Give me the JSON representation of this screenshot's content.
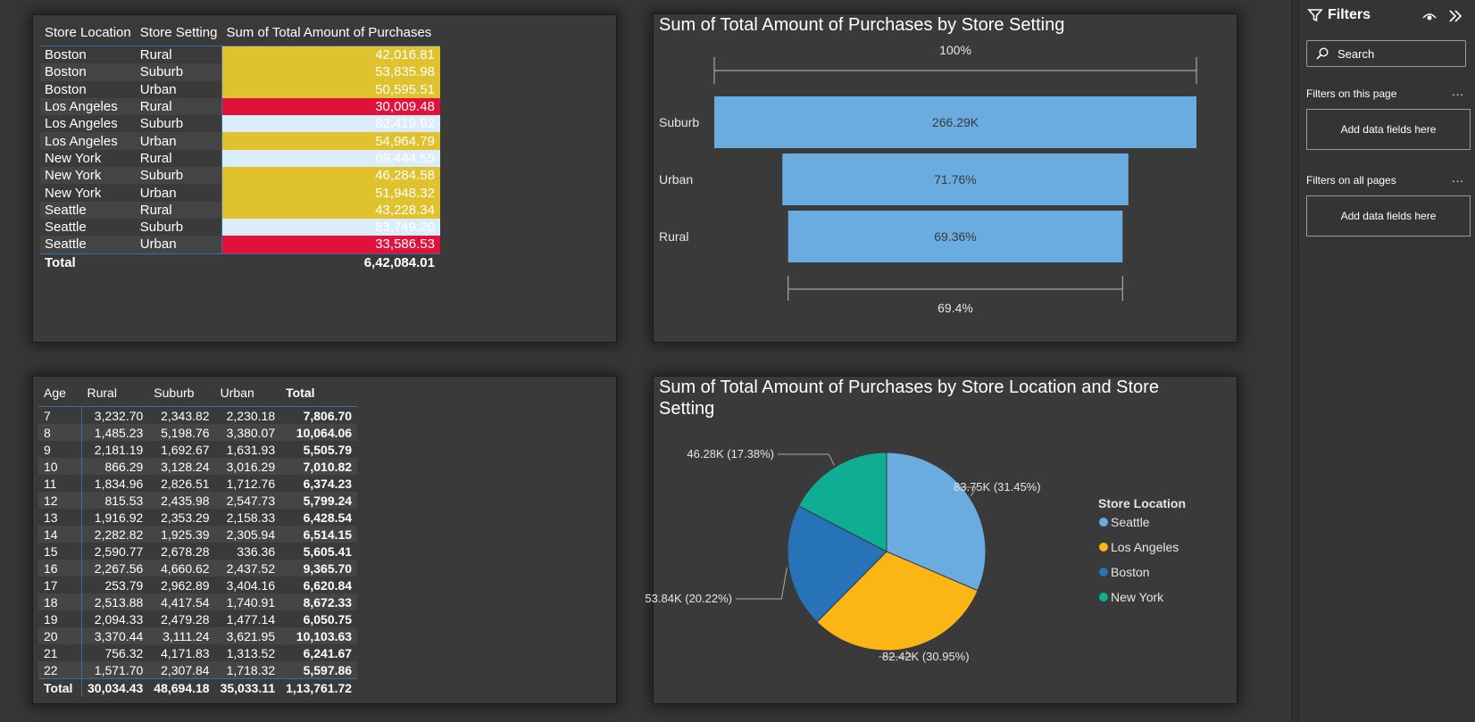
{
  "table1": {
    "headers": [
      "Store Location",
      "Store Setting",
      "Sum of Total Amount of Purchases"
    ],
    "rows": [
      {
        "loc": "Boston",
        "set": "Rural",
        "val": "42,016.81",
        "bg": "#e0c22e",
        "fg": "#ffffff"
      },
      {
        "loc": "Boston",
        "set": "Suburb",
        "val": "53,835.98",
        "bg": "#e0c22e",
        "fg": "#ffffff"
      },
      {
        "loc": "Boston",
        "set": "Urban",
        "val": "50,595.51",
        "bg": "#e0c22e",
        "fg": "#ffffff"
      },
      {
        "loc": "Los Angeles",
        "set": "Rural",
        "val": "30,009.48",
        "bg": "#e0113a",
        "fg": "#ffffff"
      },
      {
        "loc": "Los Angeles",
        "set": "Suburb",
        "val": "82,419.92",
        "bg": "#dbecfb",
        "fg": "#ffffff"
      },
      {
        "loc": "Los Angeles",
        "set": "Urban",
        "val": "54,964.79",
        "bg": "#e0c22e",
        "fg": "#ffffff"
      },
      {
        "loc": "New York",
        "set": "Rural",
        "val": "69,444.55",
        "bg": "#dbecfb",
        "fg": "#ffffff"
      },
      {
        "loc": "New York",
        "set": "Suburb",
        "val": "46,284.58",
        "bg": "#e0c22e",
        "fg": "#ffffff"
      },
      {
        "loc": "New York",
        "set": "Urban",
        "val": "51,948.32",
        "bg": "#e0c22e",
        "fg": "#ffffff"
      },
      {
        "loc": "Seattle",
        "set": "Rural",
        "val": "43,228.34",
        "bg": "#e0c22e",
        "fg": "#ffffff"
      },
      {
        "loc": "Seattle",
        "set": "Suburb",
        "val": "83,749.20",
        "bg": "#dbecfb",
        "fg": "#ffffff"
      },
      {
        "loc": "Seattle",
        "set": "Urban",
        "val": "33,586.53",
        "bg": "#e0113a",
        "fg": "#ffffff"
      }
    ],
    "total_label": "Total",
    "total_value": "6,42,084.01"
  },
  "funnel": {
    "title": "Sum of Total Amount of Purchases by Store Setting",
    "top_label": "100%",
    "bottom_label": "69.4%",
    "bar_color": "#6aace0"
  },
  "chart_data": [
    {
      "type": "bar",
      "subtype": "funnel",
      "title": "Sum of Total Amount of Purchases by Store Setting",
      "categories": [
        "Suburb",
        "Urban",
        "Rural"
      ],
      "values": [
        266290,
        191098,
        184699
      ],
      "data_labels": [
        "266.29K",
        "71.76%",
        "69.36%"
      ],
      "relative": [
        1.0,
        0.7176,
        0.6936
      ],
      "annotations": {
        "top": "100%",
        "bottom": "69.4%"
      }
    },
    {
      "type": "pie",
      "title": "Sum of Total Amount of Purchases by Store Location and Store Setting",
      "legend_title": "Store Location",
      "legend_position": "right",
      "labels": [
        "Seattle",
        "Los Angeles",
        "Boston",
        "New York"
      ],
      "values": [
        83.75,
        82.42,
        53.84,
        46.28
      ],
      "percents": [
        31.45,
        30.95,
        20.22,
        17.38
      ],
      "data_labels": [
        "83.75K (31.45%)",
        "82.42K (30.95%)",
        "53.84K (20.22%)",
        "46.28K (17.38%)"
      ],
      "colors": [
        "#6aace0",
        "#fbb515",
        "#2673b8",
        "#0fae94"
      ]
    }
  ],
  "table3": {
    "headers": [
      "Age",
      "Rural",
      "Suburb",
      "Urban",
      "Total"
    ],
    "rows": [
      [
        "7",
        "3,232.70",
        "2,343.82",
        "2,230.18",
        "7,806.70"
      ],
      [
        "8",
        "1,485.23",
        "5,198.76",
        "3,380.07",
        "10,064.06"
      ],
      [
        "9",
        "2,181.19",
        "1,692.67",
        "1,631.93",
        "5,505.79"
      ],
      [
        "10",
        "866.29",
        "3,128.24",
        "3,016.29",
        "7,010.82"
      ],
      [
        "11",
        "1,834.96",
        "2,826.51",
        "1,712.76",
        "6,374.23"
      ],
      [
        "12",
        "815.53",
        "2,435.98",
        "2,547.73",
        "5,799.24"
      ],
      [
        "13",
        "1,916.92",
        "2,353.29",
        "2,158.33",
        "6,428.54"
      ],
      [
        "14",
        "2,282.82",
        "1,925.39",
        "2,305.94",
        "6,514.15"
      ],
      [
        "15",
        "2,590.77",
        "2,678.28",
        "336.36",
        "5,605.41"
      ],
      [
        "16",
        "2,267.56",
        "4,660.62",
        "2,437.52",
        "9,365.70"
      ],
      [
        "17",
        "253.79",
        "2,962.89",
        "3,404.16",
        "6,620.84"
      ],
      [
        "18",
        "2,513.88",
        "4,417.54",
        "1,740.91",
        "8,672.33"
      ],
      [
        "19",
        "2,094.33",
        "2,479.28",
        "1,477.14",
        "6,050.75"
      ],
      [
        "20",
        "3,370.44",
        "3,111.24",
        "3,621.95",
        "10,103.63"
      ],
      [
        "21",
        "756.32",
        "4,171.83",
        "1,313.52",
        "6,241.67"
      ],
      [
        "22",
        "1,571.70",
        "2,307.84",
        "1,718.32",
        "5,597.86"
      ]
    ],
    "total": [
      "Total",
      "30,034.43",
      "48,694.18",
      "35,033.11",
      "1,13,761.72"
    ]
  },
  "pie": {
    "title_line1": "Sum of Total Amount of Purchases by Store Location and Store",
    "title_line2": "Setting"
  },
  "filters": {
    "title": "Filters",
    "search_placeholder": "Search",
    "on_this_page": "Filters on this page",
    "on_all_pages": "Filters on all pages",
    "dropzone_label": "Add data fields here",
    "more": "..."
  }
}
